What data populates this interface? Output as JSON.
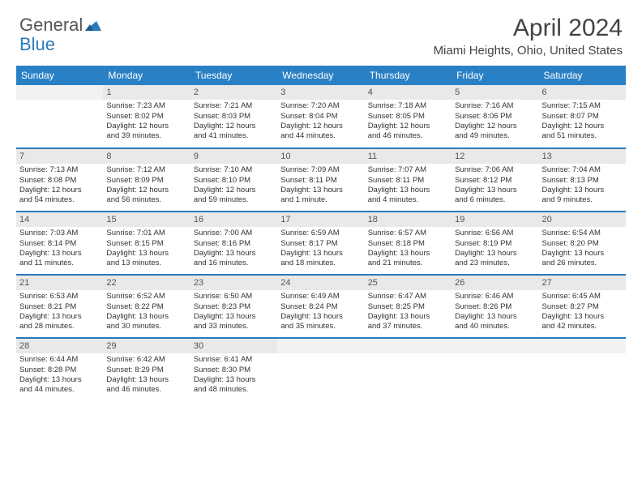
{
  "logo": {
    "general": "General",
    "blue": "Blue"
  },
  "title": "April 2024",
  "location": "Miami Heights, Ohio, United States",
  "dayHeaders": [
    "Sunday",
    "Monday",
    "Tuesday",
    "Wednesday",
    "Thursday",
    "Friday",
    "Saturday"
  ],
  "colors": {
    "headerBg": "#2a80c4",
    "accent": "#2a7ab9",
    "grayBand": "#e9e9e9",
    "text": "#333333"
  },
  "weeks": [
    [
      {
        "empty": true
      },
      {
        "n": "1",
        "sr": "Sunrise: 7:23 AM",
        "ss": "Sunset: 8:02 PM",
        "d1": "Daylight: 12 hours",
        "d2": "and 39 minutes."
      },
      {
        "n": "2",
        "sr": "Sunrise: 7:21 AM",
        "ss": "Sunset: 8:03 PM",
        "d1": "Daylight: 12 hours",
        "d2": "and 41 minutes."
      },
      {
        "n": "3",
        "sr": "Sunrise: 7:20 AM",
        "ss": "Sunset: 8:04 PM",
        "d1": "Daylight: 12 hours",
        "d2": "and 44 minutes."
      },
      {
        "n": "4",
        "sr": "Sunrise: 7:18 AM",
        "ss": "Sunset: 8:05 PM",
        "d1": "Daylight: 12 hours",
        "d2": "and 46 minutes."
      },
      {
        "n": "5",
        "sr": "Sunrise: 7:16 AM",
        "ss": "Sunset: 8:06 PM",
        "d1": "Daylight: 12 hours",
        "d2": "and 49 minutes."
      },
      {
        "n": "6",
        "sr": "Sunrise: 7:15 AM",
        "ss": "Sunset: 8:07 PM",
        "d1": "Daylight: 12 hours",
        "d2": "and 51 minutes."
      }
    ],
    [
      {
        "n": "7",
        "sr": "Sunrise: 7:13 AM",
        "ss": "Sunset: 8:08 PM",
        "d1": "Daylight: 12 hours",
        "d2": "and 54 minutes."
      },
      {
        "n": "8",
        "sr": "Sunrise: 7:12 AM",
        "ss": "Sunset: 8:09 PM",
        "d1": "Daylight: 12 hours",
        "d2": "and 56 minutes."
      },
      {
        "n": "9",
        "sr": "Sunrise: 7:10 AM",
        "ss": "Sunset: 8:10 PM",
        "d1": "Daylight: 12 hours",
        "d2": "and 59 minutes."
      },
      {
        "n": "10",
        "sr": "Sunrise: 7:09 AM",
        "ss": "Sunset: 8:11 PM",
        "d1": "Daylight: 13 hours",
        "d2": "and 1 minute."
      },
      {
        "n": "11",
        "sr": "Sunrise: 7:07 AM",
        "ss": "Sunset: 8:11 PM",
        "d1": "Daylight: 13 hours",
        "d2": "and 4 minutes."
      },
      {
        "n": "12",
        "sr": "Sunrise: 7:06 AM",
        "ss": "Sunset: 8:12 PM",
        "d1": "Daylight: 13 hours",
        "d2": "and 6 minutes."
      },
      {
        "n": "13",
        "sr": "Sunrise: 7:04 AM",
        "ss": "Sunset: 8:13 PM",
        "d1": "Daylight: 13 hours",
        "d2": "and 9 minutes."
      }
    ],
    [
      {
        "n": "14",
        "sr": "Sunrise: 7:03 AM",
        "ss": "Sunset: 8:14 PM",
        "d1": "Daylight: 13 hours",
        "d2": "and 11 minutes."
      },
      {
        "n": "15",
        "sr": "Sunrise: 7:01 AM",
        "ss": "Sunset: 8:15 PM",
        "d1": "Daylight: 13 hours",
        "d2": "and 13 minutes."
      },
      {
        "n": "16",
        "sr": "Sunrise: 7:00 AM",
        "ss": "Sunset: 8:16 PM",
        "d1": "Daylight: 13 hours",
        "d2": "and 16 minutes."
      },
      {
        "n": "17",
        "sr": "Sunrise: 6:59 AM",
        "ss": "Sunset: 8:17 PM",
        "d1": "Daylight: 13 hours",
        "d2": "and 18 minutes."
      },
      {
        "n": "18",
        "sr": "Sunrise: 6:57 AM",
        "ss": "Sunset: 8:18 PM",
        "d1": "Daylight: 13 hours",
        "d2": "and 21 minutes."
      },
      {
        "n": "19",
        "sr": "Sunrise: 6:56 AM",
        "ss": "Sunset: 8:19 PM",
        "d1": "Daylight: 13 hours",
        "d2": "and 23 minutes."
      },
      {
        "n": "20",
        "sr": "Sunrise: 6:54 AM",
        "ss": "Sunset: 8:20 PM",
        "d1": "Daylight: 13 hours",
        "d2": "and 26 minutes."
      }
    ],
    [
      {
        "n": "21",
        "sr": "Sunrise: 6:53 AM",
        "ss": "Sunset: 8:21 PM",
        "d1": "Daylight: 13 hours",
        "d2": "and 28 minutes."
      },
      {
        "n": "22",
        "sr": "Sunrise: 6:52 AM",
        "ss": "Sunset: 8:22 PM",
        "d1": "Daylight: 13 hours",
        "d2": "and 30 minutes."
      },
      {
        "n": "23",
        "sr": "Sunrise: 6:50 AM",
        "ss": "Sunset: 8:23 PM",
        "d1": "Daylight: 13 hours",
        "d2": "and 33 minutes."
      },
      {
        "n": "24",
        "sr": "Sunrise: 6:49 AM",
        "ss": "Sunset: 8:24 PM",
        "d1": "Daylight: 13 hours",
        "d2": "and 35 minutes."
      },
      {
        "n": "25",
        "sr": "Sunrise: 6:47 AM",
        "ss": "Sunset: 8:25 PM",
        "d1": "Daylight: 13 hours",
        "d2": "and 37 minutes."
      },
      {
        "n": "26",
        "sr": "Sunrise: 6:46 AM",
        "ss": "Sunset: 8:26 PM",
        "d1": "Daylight: 13 hours",
        "d2": "and 40 minutes."
      },
      {
        "n": "27",
        "sr": "Sunrise: 6:45 AM",
        "ss": "Sunset: 8:27 PM",
        "d1": "Daylight: 13 hours",
        "d2": "and 42 minutes."
      }
    ],
    [
      {
        "n": "28",
        "sr": "Sunrise: 6:44 AM",
        "ss": "Sunset: 8:28 PM",
        "d1": "Daylight: 13 hours",
        "d2": "and 44 minutes."
      },
      {
        "n": "29",
        "sr": "Sunrise: 6:42 AM",
        "ss": "Sunset: 8:29 PM",
        "d1": "Daylight: 13 hours",
        "d2": "and 46 minutes."
      },
      {
        "n": "30",
        "sr": "Sunrise: 6:41 AM",
        "ss": "Sunset: 8:30 PM",
        "d1": "Daylight: 13 hours",
        "d2": "and 48 minutes."
      },
      {
        "empty": true
      },
      {
        "empty": true
      },
      {
        "empty": true
      },
      {
        "empty": true
      }
    ]
  ]
}
